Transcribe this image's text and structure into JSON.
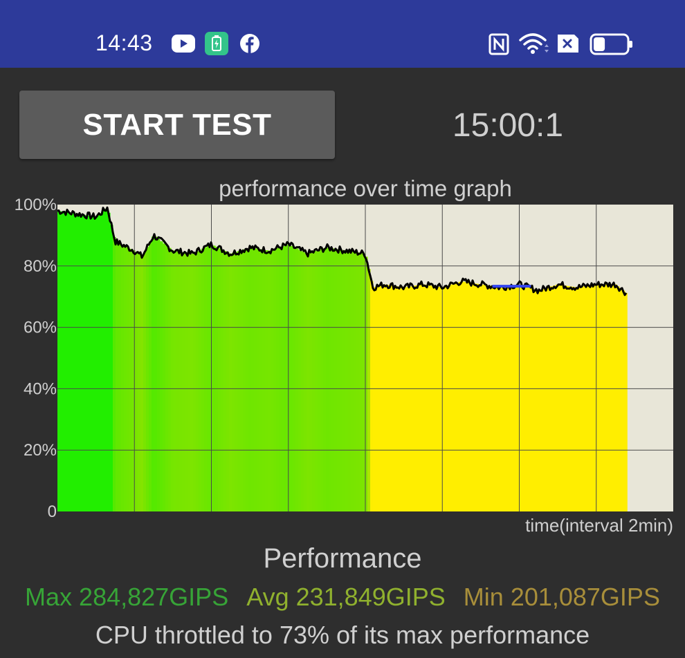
{
  "status_bar": {
    "time": "14:43",
    "left_icons": [
      "youtube-icon",
      "battery-saver-app-icon",
      "facebook-icon"
    ],
    "right_icons": [
      "nfc-icon",
      "wifi-icon",
      "no-sim-icon",
      "battery-icon"
    ],
    "battery_level": 0.35,
    "colors": {
      "background": "#2d3a9a"
    }
  },
  "controls": {
    "start_label": "START TEST",
    "timer": "15:00:1"
  },
  "graph_title": "performance over time graph",
  "x_axis_label": "time(interval 2min)",
  "performance": {
    "heading": "Performance",
    "max": "Max 284,827GIPS",
    "avg": "Avg 231,849GIPS",
    "min": "Min 201,087GIPS",
    "throttle_text": "CPU throttled to 73% of its max performance",
    "colors": {
      "max": "#37a437",
      "avg": "#90b12e",
      "min": "#a88e3a"
    }
  },
  "chart_data": {
    "type": "area",
    "title": "performance over time graph",
    "xlabel": "time(interval 2min)",
    "ylabel": "",
    "y_ticks": [
      "0",
      "20%",
      "40%",
      "60%",
      "80%",
      "100%"
    ],
    "ylim": [
      0,
      100
    ],
    "x_unit": "minutes",
    "xlim": [
      0,
      16
    ],
    "grid": true,
    "x": [
      0,
      0.5,
      1,
      1.3,
      1.5,
      2,
      2.2,
      2.5,
      3,
      3.5,
      4,
      4.5,
      5,
      5.5,
      6,
      6.5,
      7,
      7.5,
      8,
      8.2,
      8.5,
      9,
      9.5,
      10,
      10.5,
      11,
      11.5,
      12,
      12.5,
      13,
      13.5,
      14,
      14.5,
      14.8
    ],
    "values": [
      98,
      97,
      96,
      99,
      88,
      85,
      83,
      90,
      85,
      84,
      87,
      84,
      86,
      85,
      87,
      84,
      86,
      85,
      84,
      73,
      74,
      73,
      74,
      73,
      75,
      74,
      73,
      74,
      72,
      74,
      73,
      74,
      74,
      71
    ],
    "colors": {
      "line": "#000000",
      "plot_background": "#e8e6d8",
      "high": "#22ee00",
      "mid": "#9ae200",
      "low": "#ffee00",
      "marker": "#3344ee"
    }
  }
}
